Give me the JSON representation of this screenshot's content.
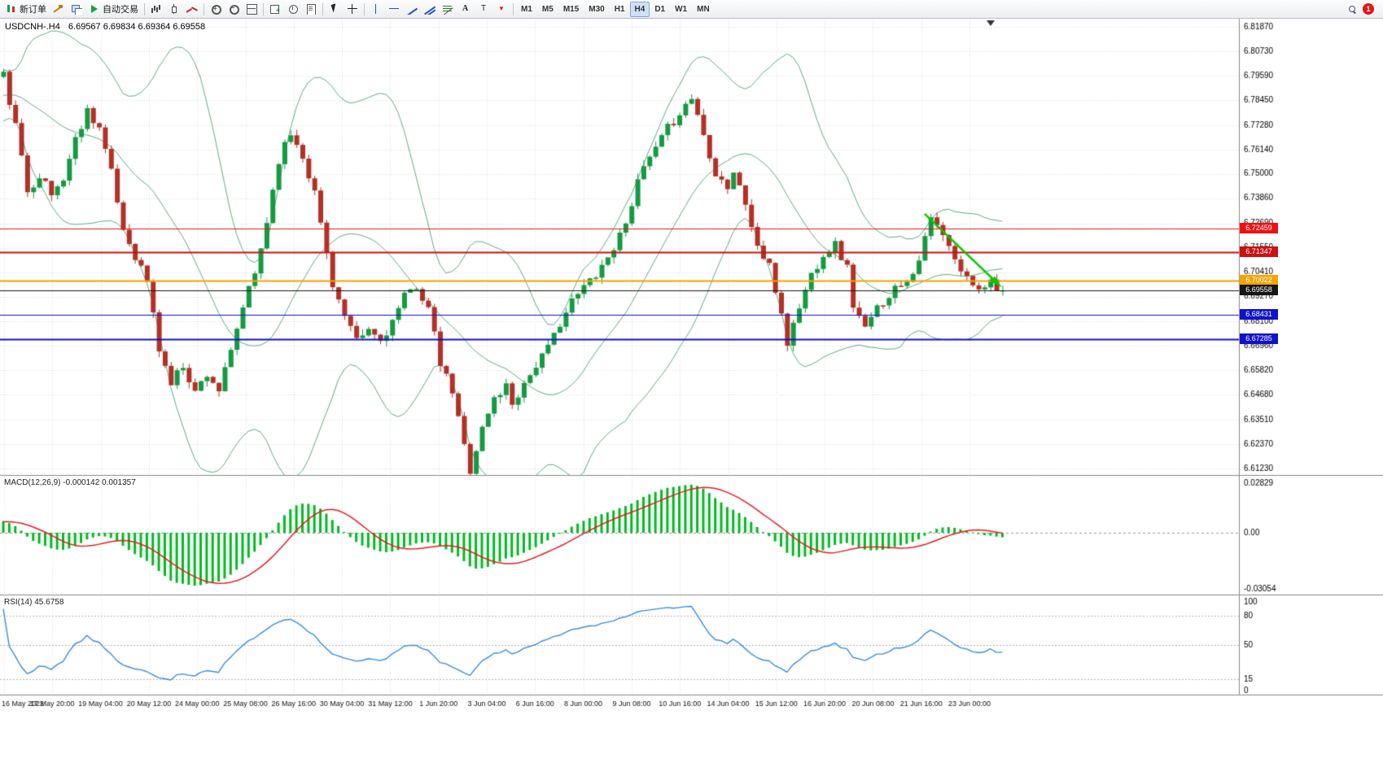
{
  "toolbar": {
    "groups": [
      {
        "items": [
          {
            "name": "new-order-button",
            "icon": "new-order-icon",
            "label": "新订单"
          },
          {
            "name": "order-hammer-button",
            "icon": "hammer-icon",
            "label": ""
          },
          {
            "name": "market-watch-button",
            "icon": "windows-icon",
            "label": ""
          },
          {
            "name": "auto-trading-button",
            "icon": "play-icon",
            "label": "自动交易"
          }
        ]
      },
      {
        "items": [
          {
            "name": "bar-chart-button",
            "icon": "bar-chart-icon",
            "label": ""
          },
          {
            "name": "candlestick-chart-button",
            "icon": "candlestick-icon",
            "label": ""
          },
          {
            "name": "line-chart-button",
            "icon": "line-chart-icon",
            "label": ""
          }
        ]
      },
      {
        "items": [
          {
            "name": "zoom-in-button",
            "icon": "zoom-in-icon",
            "label": ""
          },
          {
            "name": "zoom-out-button",
            "icon": "zoom-out-icon",
            "label": ""
          },
          {
            "name": "tile-windows-button",
            "icon": "tile-windows-icon",
            "label": ""
          }
        ]
      },
      {
        "items": [
          {
            "name": "new-chart-button",
            "icon": "new-chart-icon",
            "label": ""
          },
          {
            "name": "periods-button",
            "icon": "clock-icon",
            "label": ""
          },
          {
            "name": "templates-button",
            "icon": "template-icon",
            "label": ""
          }
        ]
      },
      {
        "items": [
          {
            "name": "cursor-button",
            "icon": "cursor-icon",
            "label": ""
          },
          {
            "name": "crosshair-button",
            "icon": "crosshair-icon",
            "label": ""
          }
        ]
      },
      {
        "items": [
          {
            "name": "vertical-line-button",
            "icon": "vline-icon",
            "label": ""
          },
          {
            "name": "horizontal-line-button",
            "icon": "hline-icon",
            "label": ""
          },
          {
            "name": "trendline-button",
            "icon": "trendline-icon",
            "label": ""
          },
          {
            "name": "channel-button",
            "icon": "channel-icon",
            "label": ""
          },
          {
            "name": "fibonacci-button",
            "icon": "fibonacci-icon",
            "label": ""
          },
          {
            "name": "text-button",
            "icon": "text-icon",
            "label": ""
          },
          {
            "name": "label-button",
            "icon": "label-icon",
            "label": ""
          },
          {
            "name": "arrow-tools-button",
            "icon": "arrows-icon",
            "label": ""
          }
        ]
      }
    ],
    "timeframes": [
      "M1",
      "M5",
      "M15",
      "M30",
      "H1",
      "H4",
      "D1",
      "W1",
      "MN"
    ],
    "active_timeframe": "H4",
    "notification_count": "1"
  },
  "chart": {
    "symbol_period": "USDCNH-.H4",
    "ohlc_text": "6.69567 6.69834 6.69364 6.69558"
  },
  "chart_data": {
    "type": "candlestick",
    "symbol": "USDCNH-",
    "period": "H4",
    "current": {
      "open": 6.69567,
      "high": 6.69834,
      "low": 6.69364,
      "close": 6.69558
    },
    "price_axis_ticks": [
      6.8187,
      6.8073,
      6.7959,
      6.7845,
      6.7728,
      6.7614,
      6.75,
      6.7386,
      6.7269,
      6.7155,
      6.7041,
      6.6927,
      6.681,
      6.6696,
      6.6582,
      6.6468,
      6.6351,
      6.6237,
      6.6123
    ],
    "time_axis_labels": [
      "16 May 2022",
      "17 May 20:00",
      "19 May 04:00",
      "20 May 12:00",
      "24 May 00:00",
      "25 May 08:00",
      "26 May 16:00",
      "30 May 04:00",
      "31 May 12:00",
      "1 Jun 20:00",
      "3 Jun 04:00",
      "6 Jun 16:00",
      "8 Jun 00:00",
      "9 Jun 08:00",
      "10 Jun 16:00",
      "14 Jun 04:00",
      "15 Jun 12:00",
      "16 Jun 20:00",
      "20 Jun 08:00",
      "21 Jun 16:00",
      "23 Jun 00:00"
    ],
    "levels": [
      {
        "label": "6.72459",
        "price": 6.72459,
        "color": "#ee1111",
        "width": 1.2,
        "dash": []
      },
      {
        "label": "6.71347",
        "price": 6.71347,
        "color": "#cc1111",
        "width": 2,
        "dash": []
      },
      {
        "label": "6.70022",
        "price": 6.70022,
        "color": "#f5a300",
        "width": 2,
        "dash": []
      },
      {
        "label": "6.69558",
        "price": 6.69558,
        "color": "#151515",
        "width": 1.2,
        "dash": []
      },
      {
        "label": "6.68431",
        "price": 6.68431,
        "color": "#1111cc",
        "width": 1.2,
        "dash": []
      },
      {
        "label": "6.67285",
        "price": 6.67285,
        "color": "#1111cc",
        "width": 2,
        "dash": []
      }
    ],
    "bollinger": {
      "period": 20,
      "deviation": 2,
      "color": "#5fae7f"
    },
    "macd": {
      "label": "MACD(12,26,9) -0.000142 0.001357",
      "axis_labels": [
        "0.02829",
        "0.00",
        "-0.03054"
      ],
      "hist_color": "#00bb22",
      "signal_color": "#e02020"
    },
    "rsi": {
      "label": "RSI(14) 45.6758",
      "value": 45.6758,
      "levels": [
        80,
        50,
        15
      ],
      "axis_labels": [
        "100",
        "80",
        "50",
        "15",
        "0"
      ],
      "color": "#3b8ce0"
    },
    "candles": {
      "count": 168,
      "seed": 11,
      "bull_color": "#159a43",
      "bear_color": "#b23127",
      "anchors": [
        [
          0,
          6.796
        ],
        [
          2,
          6.772
        ],
        [
          4,
          6.742
        ],
        [
          6,
          6.75
        ],
        [
          8,
          6.74
        ],
        [
          10,
          6.748
        ],
        [
          12,
          6.766
        ],
        [
          14,
          6.78
        ],
        [
          16,
          6.772
        ],
        [
          18,
          6.75
        ],
        [
          20,
          6.724
        ],
        [
          22,
          6.712
        ],
        [
          24,
          6.7
        ],
        [
          26,
          6.668
        ],
        [
          28,
          6.652
        ],
        [
          30,
          6.661
        ],
        [
          32,
          6.648
        ],
        [
          34,
          6.657
        ],
        [
          36,
          6.649
        ],
        [
          38,
          6.666
        ],
        [
          40,
          6.688
        ],
        [
          42,
          6.703
        ],
        [
          44,
          6.728
        ],
        [
          46,
          6.757
        ],
        [
          48,
          6.769
        ],
        [
          50,
          6.759
        ],
        [
          52,
          6.741
        ],
        [
          54,
          6.713
        ],
        [
          55,
          6.699
        ],
        [
          57,
          6.683
        ],
        [
          59,
          6.671
        ],
        [
          61,
          6.677
        ],
        [
          63,
          6.672
        ],
        [
          65,
          6.681
        ],
        [
          67,
          6.692
        ],
        [
          69,
          6.698
        ],
        [
          71,
          6.687
        ],
        [
          73,
          6.661
        ],
        [
          75,
          6.648
        ],
        [
          77,
          6.623
        ],
        [
          78,
          6.612
        ],
        [
          80,
          6.631
        ],
        [
          82,
          6.645
        ],
        [
          84,
          6.651
        ],
        [
          85,
          6.643
        ],
        [
          87,
          6.652
        ],
        [
          89,
          6.661
        ],
        [
          91,
          6.668
        ],
        [
          93,
          6.681
        ],
        [
          95,
          6.69
        ],
        [
          97,
          6.697
        ],
        [
          99,
          6.704
        ],
        [
          101,
          6.711
        ],
        [
          103,
          6.721
        ],
        [
          105,
          6.737
        ],
        [
          107,
          6.753
        ],
        [
          109,
          6.761
        ],
        [
          111,
          6.771
        ],
        [
          113,
          6.779
        ],
        [
          115,
          6.7855
        ],
        [
          116,
          6.778
        ],
        [
          117,
          6.768
        ],
        [
          119,
          6.751
        ],
        [
          121,
          6.744
        ],
        [
          122,
          6.751
        ],
        [
          124,
          6.736
        ],
        [
          126,
          6.716
        ],
        [
          128,
          6.706
        ],
        [
          130,
          6.685
        ],
        [
          131,
          6.671
        ],
        [
          133,
          6.688
        ],
        [
          135,
          6.703
        ],
        [
          137,
          6.713
        ],
        [
          139,
          6.717
        ],
        [
          141,
          6.706
        ],
        [
          142,
          6.689
        ],
        [
          144,
          6.677
        ],
        [
          146,
          6.687
        ],
        [
          148,
          6.694
        ],
        [
          150,
          6.699
        ],
        [
          152,
          6.704
        ],
        [
          154,
          6.719
        ],
        [
          155,
          6.729
        ],
        [
          157,
          6.721
        ],
        [
          159,
          6.709
        ],
        [
          161,
          6.701
        ],
        [
          163,
          6.6975
        ],
        [
          165,
          6.7
        ],
        [
          167,
          6.69558
        ]
      ]
    },
    "trend_arrow": {
      "from": [
        154,
        6.7313
      ],
      "to": [
        166,
        6.6993
      ],
      "color": "#00ca00"
    }
  }
}
